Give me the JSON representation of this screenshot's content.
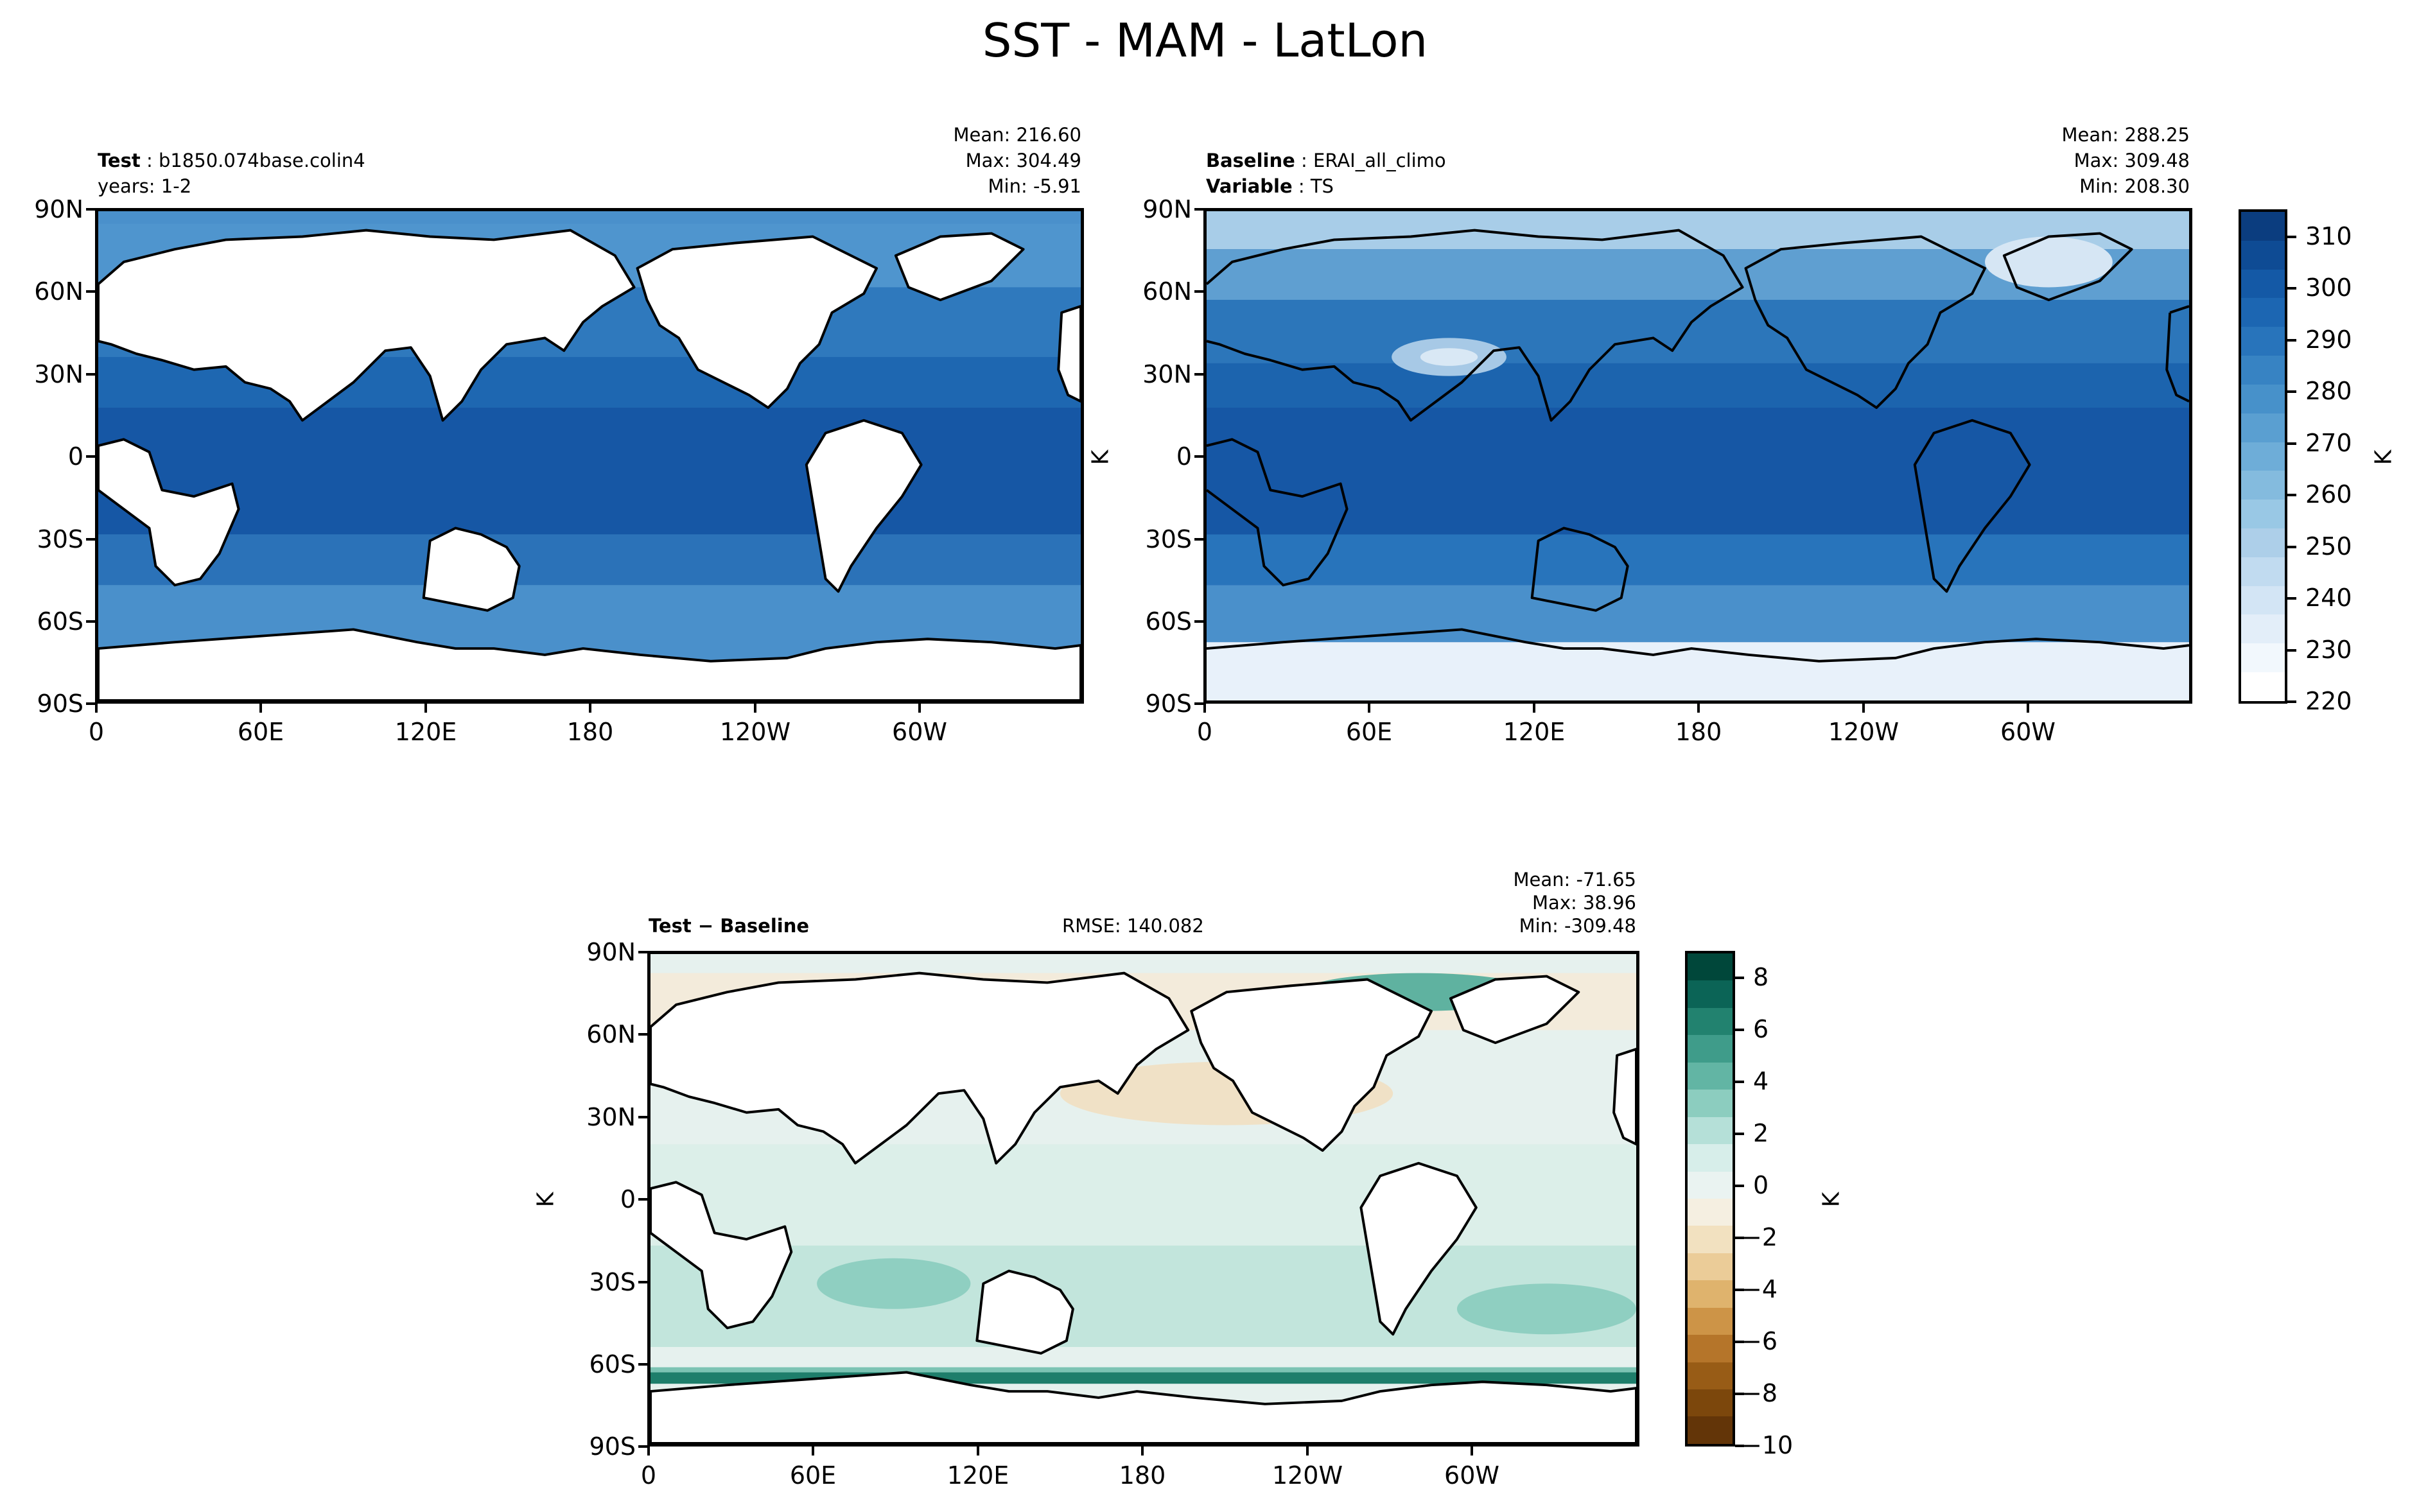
{
  "figure": {
    "title": "SST - MAM - LatLon"
  },
  "panels": {
    "test": {
      "label_bold": "Test",
      "label_value": "b1850.074base.colin4",
      "years": "years: 1-2",
      "mean": "Mean: 216.60",
      "max": "Max: 304.49",
      "min": "Min: -5.91"
    },
    "baseline": {
      "label_bold": "Baseline",
      "label_value": "ERAI_all_climo",
      "variable_bold": "Variable",
      "variable_value": "TS",
      "mean": "Mean: 288.25",
      "max": "Max: 309.48",
      "min": "Min: 208.30",
      "unit": "K"
    },
    "diff": {
      "label": "Test − Baseline",
      "rmse": "RMSE: 140.082",
      "mean": "Mean: -71.65",
      "max": "Max: 38.96",
      "min": "Min: -309.48",
      "unit": "K"
    }
  },
  "axes": {
    "lat_ticks": [
      "90N",
      "60N",
      "30N",
      "0",
      "30S",
      "60S",
      "90S"
    ],
    "lon_ticks": [
      "0",
      "60E",
      "120E",
      "180",
      "120W",
      "60W"
    ]
  },
  "colorbars": {
    "top": {
      "unit": "K",
      "ticks": [
        "310",
        "300",
        "290",
        "280",
        "270",
        "260",
        "250",
        "240",
        "230",
        "220"
      ],
      "colors": [
        "#0b3d7f",
        "#0e4b94",
        "#1459a6",
        "#1c66b2",
        "#2874bb",
        "#3783c3",
        "#4791ca",
        "#5a9fd1",
        "#6eadd8",
        "#84bbde",
        "#99c8e5",
        "#adcfe9",
        "#c1dbf0",
        "#d3e5f5",
        "#e3eef9",
        "#f2f8fd",
        "#ffffff"
      ]
    },
    "diff": {
      "unit": "K",
      "ticks": [
        "8",
        "6",
        "4",
        "2",
        "0",
        "−2",
        "−4",
        "−6",
        "−8",
        "−10"
      ],
      "colors": [
        "#00473a",
        "#0b6456",
        "#22826f",
        "#3f9c8a",
        "#62b5a4",
        "#8ccdbf",
        "#b5e0d8",
        "#d7eeea",
        "#eaf3f1",
        "#f5efe1",
        "#f2e1c0",
        "#ebcc98",
        "#dfb36d",
        "#cd9447",
        "#b5752a",
        "#985c16",
        "#7c470c",
        "#633508"
      ]
    }
  }
}
